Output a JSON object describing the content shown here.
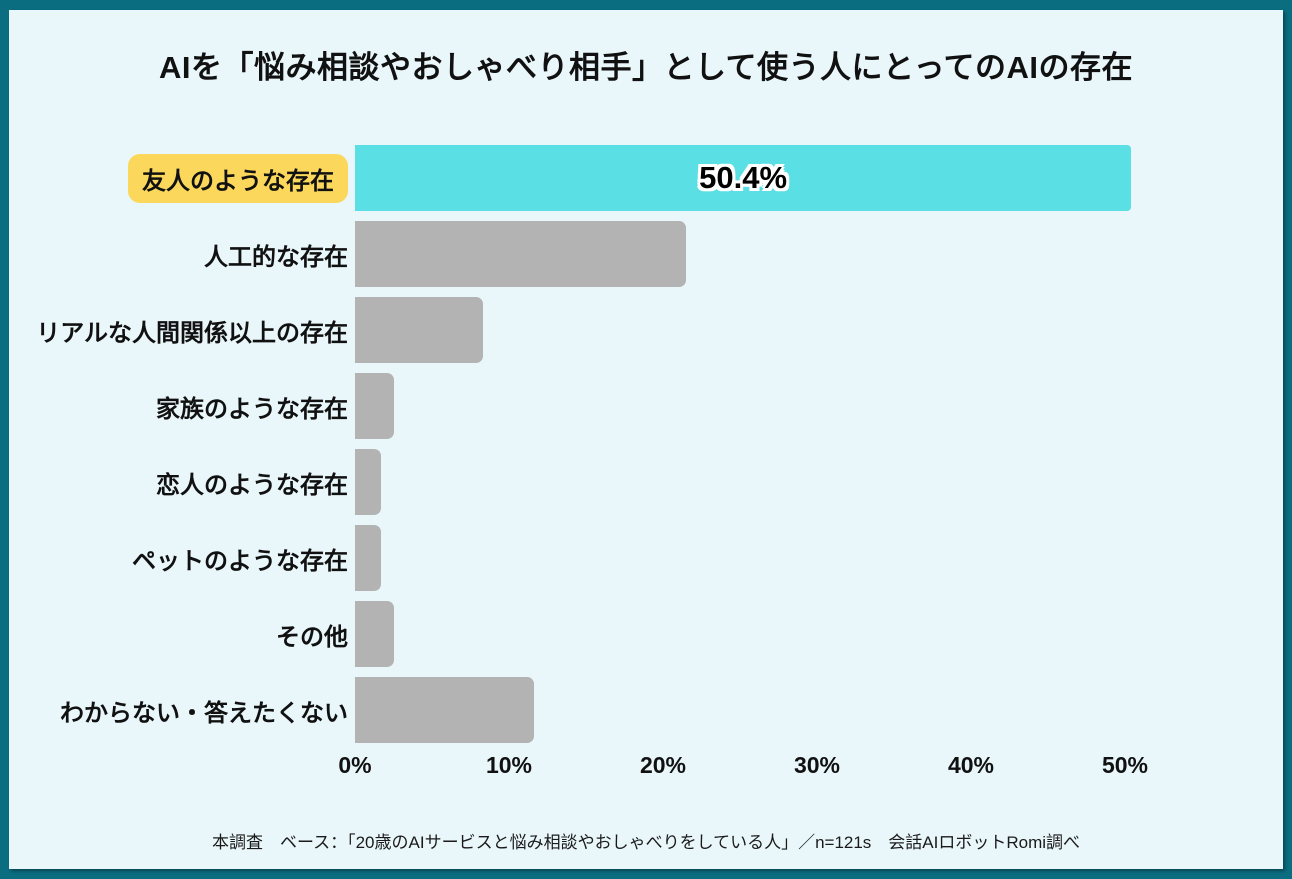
{
  "title": "AIを「悩み相談やおしゃべり相手」として使う人にとってのAIの存在",
  "footer": "本調査　ベース：「20歳のAIサービスと悩み相談やおしゃべりをしている人」／n=121s　会話AIロボットRomi調べ",
  "colors": {
    "frame": "#0a6d80",
    "panel_background": "#e9f7fb",
    "highlight_bar": "#5adfe4",
    "default_bar": "#b3b3b3",
    "highlight_label_background": "#fbd85b",
    "text": "#111111"
  },
  "chart_data": {
    "type": "bar",
    "orientation": "horizontal",
    "title": "AIを「悩み相談やおしゃべり相手」として使う人にとってのAIの存在",
    "categories": [
      "友人のような存在",
      "人工的な存在",
      "リアルな人間関係以上の存在",
      "家族のような存在",
      "恋人のような存在",
      "ペットのような存在",
      "その他",
      "わからない・答えたくない"
    ],
    "values": [
      50.4,
      21.5,
      8.3,
      2.5,
      1.7,
      1.7,
      2.5,
      11.6
    ],
    "value_labels": [
      "50.4%",
      "",
      "",
      "",
      "",
      "",
      "",
      ""
    ],
    "highlighted_category_index": 0,
    "xlabel": "",
    "ylabel": "",
    "xlim": [
      0,
      50
    ],
    "x_ticks": [
      0,
      10,
      20,
      30,
      40,
      50
    ],
    "x_tick_labels": [
      "0%",
      "10%",
      "20%",
      "30%",
      "40%",
      "50%"
    ],
    "grid": false,
    "legend": "none"
  }
}
